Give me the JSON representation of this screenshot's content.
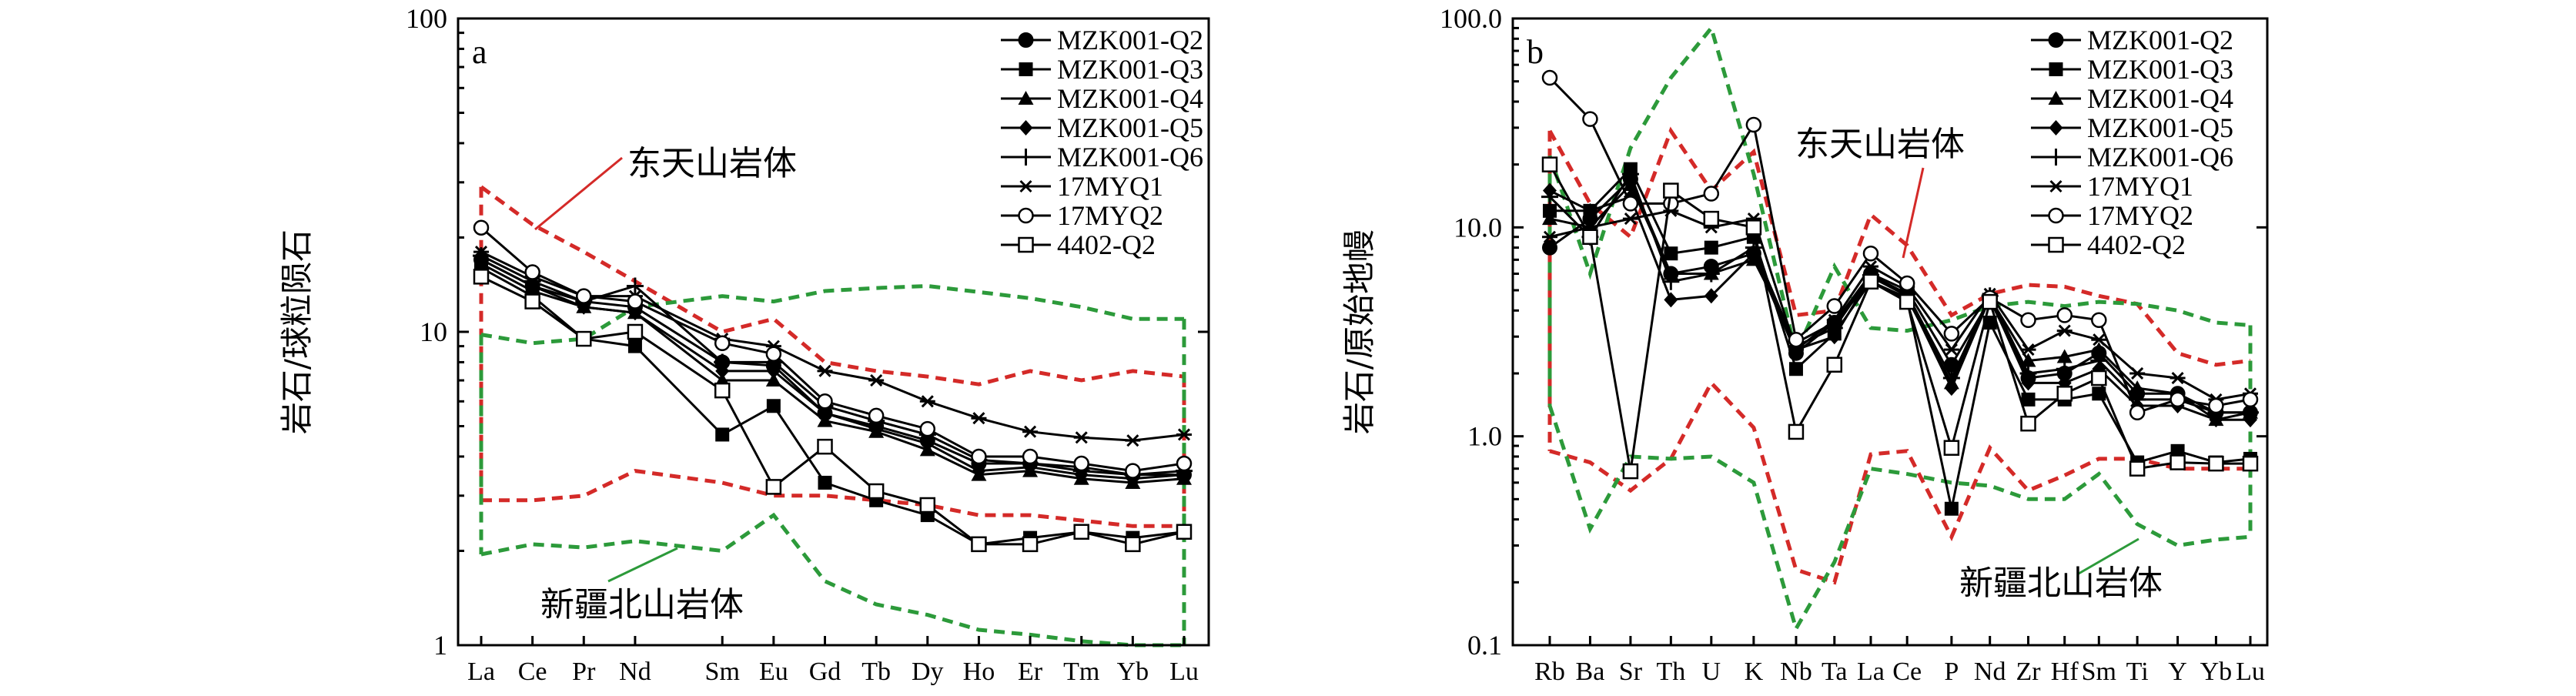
{
  "colors": {
    "red_envelope": "#d42a28",
    "green_envelope": "#2c9a3a",
    "sample": "#000000"
  },
  "chart_data": [
    {
      "type": "line",
      "panel_letter": "a",
      "ylabel": "岩石/球粒陨石",
      "yscale": "log",
      "ylim": [
        1,
        100
      ],
      "yticks": [
        "1",
        "10",
        "100"
      ],
      "grid": false,
      "legend_position": "top-right",
      "categories": [
        "La",
        "Ce",
        "Pr",
        "Nd",
        "Sm",
        "Eu",
        "Gd",
        "Tb",
        "Dy",
        "Ho",
        "Er",
        "Tm",
        "Yb",
        "Lu"
      ],
      "x_positions": [
        0,
        1,
        2,
        3,
        4.7,
        5.7,
        6.7,
        7.7,
        8.7,
        9.7,
        10.7,
        11.7,
        12.7,
        13.7
      ],
      "series": [
        {
          "name": "MZK001-Q2",
          "marker": "circle-filled",
          "values": [
            17,
            14,
            12.5,
            12,
            8,
            7.8,
            5.5,
            5,
            4.5,
            3.8,
            3.8,
            3.7,
            3.5,
            3.5
          ]
        },
        {
          "name": "MZK001-Q3",
          "marker": "square-filled",
          "values": [
            16,
            13,
            9.5,
            9,
            4.7,
            5.8,
            3.3,
            2.9,
            2.6,
            2.1,
            2.2,
            2.3,
            2.2,
            2.3
          ]
        },
        {
          "name": "MZK001-Q4",
          "marker": "triangle-filled",
          "values": [
            16.5,
            13.5,
            12,
            11.5,
            7,
            7,
            5.2,
            4.8,
            4.2,
            3.5,
            3.6,
            3.4,
            3.3,
            3.4
          ]
        },
        {
          "name": "MZK001-Q5",
          "marker": "diamond-filled",
          "values": [
            17,
            14,
            12,
            11.5,
            7.5,
            7.5,
            5.5,
            4.9,
            4.4,
            3.6,
            3.7,
            3.5,
            3.4,
            3.5
          ]
        },
        {
          "name": "MZK001-Q6",
          "marker": "plus",
          "values": [
            17.5,
            14.5,
            12.5,
            14,
            8,
            8,
            5.8,
            5.2,
            4.7,
            3.9,
            3.8,
            3.6,
            3.5,
            3.6
          ]
        },
        {
          "name": "17MYQ1",
          "marker": "asterisk",
          "values": [
            18,
            15,
            13,
            13,
            9.5,
            9,
            7.5,
            7,
            6,
            5.3,
            4.8,
            4.6,
            4.5,
            4.7
          ]
        },
        {
          "name": "17MYQ2",
          "marker": "circle-open",
          "values": [
            21.5,
            15.5,
            13,
            12.5,
            9.2,
            8.5,
            6,
            5.4,
            4.9,
            4,
            4,
            3.8,
            3.6,
            3.8
          ]
        },
        {
          "name": "4402-Q2",
          "marker": "square-open",
          "values": [
            15,
            12.5,
            9.5,
            10,
            6.5,
            3.2,
            4.3,
            3.1,
            2.8,
            2.1,
            2.1,
            2.3,
            2.1,
            2.3
          ]
        }
      ],
      "envelopes": [
        {
          "label": "东天山岩体",
          "color": "red",
          "upper": [
            29,
            22,
            18,
            14.5,
            10,
            11,
            8,
            7.5,
            7.2,
            6.8,
            7.5,
            7,
            7.5,
            7.2
          ],
          "lower": [
            2.9,
            2.9,
            3,
            3.6,
            3.3,
            3,
            3,
            2.9,
            2.8,
            2.6,
            2.6,
            2.5,
            2.4,
            2.4
          ]
        },
        {
          "label": "新疆北山岩体",
          "color": "green",
          "upper": [
            9.8,
            9.2,
            9.5,
            12,
            13,
            12.5,
            13.5,
            13.8,
            14,
            13.4,
            12.8,
            12,
            11,
            11
          ],
          "lower": [
            1.95,
            2.1,
            2.05,
            2.15,
            2,
            2.6,
            1.6,
            1.35,
            1.25,
            1.12,
            1.08,
            1.03,
            1,
            1
          ]
        }
      ],
      "annotations": [
        "东天山岩体",
        "新疆北山岩体"
      ]
    },
    {
      "type": "line",
      "panel_letter": "b",
      "ylabel": "岩石/原始地幔",
      "yscale": "log",
      "ylim": [
        0.1,
        100
      ],
      "yticks": [
        "0.1",
        "1.0",
        "10.0",
        "100.0"
      ],
      "grid": false,
      "legend_position": "top-right",
      "categories": [
        "Rb",
        "Ba",
        "Sr",
        "Th",
        "U",
        "K",
        "Nb",
        "Ta",
        "La",
        "Ce",
        "P",
        "Nd",
        "Zr",
        "Hf",
        "Sm",
        "Ti",
        "Y",
        "Yb",
        "Lu"
      ],
      "x_positions": [
        0,
        1,
        2,
        3,
        4,
        5.05,
        6.1,
        7.05,
        7.95,
        8.85,
        9.95,
        10.9,
        11.85,
        12.75,
        13.6,
        14.55,
        15.55,
        16.5,
        17.35
      ],
      "series": [
        {
          "name": "MZK001-Q2",
          "marker": "circle-filled",
          "values": [
            8,
            11,
            17,
            6,
            6.5,
            7.5,
            2.5,
            3.5,
            6,
            5,
            2.2,
            4.5,
            1.9,
            2,
            2.5,
            1.6,
            1.6,
            1.3,
            1.3
          ]
        },
        {
          "name": "MZK001-Q3",
          "marker": "square-filled",
          "values": [
            12,
            12,
            19,
            7.5,
            8,
            9,
            2.1,
            3.1,
            5.5,
            4.5,
            0.45,
            3.5,
            1.5,
            1.5,
            1.6,
            0.75,
            0.85,
            0.75,
            0.78
          ]
        },
        {
          "name": "MZK001-Q4",
          "marker": "triangle-filled",
          "values": [
            11,
            10,
            16,
            6,
            6,
            7,
            2.8,
            3.5,
            5.5,
            4.6,
            1.8,
            4.6,
            2.3,
            2.4,
            2.6,
            1.7,
            1.6,
            1.2,
            1.3
          ]
        },
        {
          "name": "MZK001-Q5",
          "marker": "diamond-filled",
          "values": [
            15,
            12,
            14,
            4.5,
            4.7,
            7.5,
            2.6,
            3,
            5.8,
            4.7,
            1.7,
            4.6,
            1.8,
            1.8,
            2.1,
            1.4,
            1.4,
            1.2,
            1.2
          ]
        },
        {
          "name": "MZK001-Q6",
          "marker": "plus",
          "values": [
            14,
            9,
            18,
            5.5,
            6,
            8,
            2.7,
            3.3,
            5.9,
            4.8,
            1.9,
            4.7,
            2,
            2.1,
            2.3,
            1.5,
            1.5,
            1.3,
            1.3
          ]
        },
        {
          "name": "17MYQ1",
          "marker": "asterisk",
          "values": [
            9,
            10,
            11,
            12,
            10,
            11,
            2.6,
            3.6,
            6.5,
            5.2,
            2.6,
            4.8,
            2.6,
            3.2,
            2.9,
            2,
            1.9,
            1.5,
            1.6
          ]
        },
        {
          "name": "17MYQ2",
          "marker": "circle-open",
          "values": [
            52,
            33,
            13,
            13,
            14.5,
            31,
            2.9,
            4.2,
            7.5,
            5.4,
            3.1,
            4.6,
            3.6,
            3.8,
            3.6,
            1.3,
            1.5,
            1.4,
            1.5
          ]
        },
        {
          "name": "4402-Q2",
          "marker": "square-open",
          "values": [
            20,
            9,
            0.68,
            15,
            11,
            10,
            1.05,
            2.2,
            5.5,
            4.4,
            0.88,
            4.4,
            1.15,
            1.6,
            1.9,
            0.7,
            0.75,
            0.74,
            0.74
          ]
        }
      ],
      "envelopes": [
        {
          "label": "东天山岩体",
          "color": "red",
          "upper": [
            29,
            13,
            9,
            29,
            15,
            23,
            3.8,
            4,
            11.5,
            8.2,
            3.8,
            4.8,
            5.3,
            5.2,
            4.7,
            4.3,
            2.5,
            2.2,
            2.3
          ],
          "lower": [
            0.85,
            0.75,
            0.55,
            0.78,
            1.8,
            1.1,
            0.23,
            0.2,
            0.82,
            0.85,
            0.33,
            0.88,
            0.55,
            0.65,
            0.78,
            0.78,
            0.7,
            0.7,
            0.7
          ]
        },
        {
          "label": "新疆北山岩体",
          "color": "green",
          "upper": [
            22,
            6,
            24,
            52,
            90,
            18,
            2.5,
            6.5,
            3.3,
            3.2,
            3.6,
            4.2,
            4.4,
            4.2,
            4.4,
            4.3,
            4,
            3.5,
            3.4
          ],
          "lower": [
            1.4,
            0.36,
            0.8,
            0.78,
            0.8,
            0.6,
            0.12,
            0.25,
            0.7,
            0.66,
            0.6,
            0.58,
            0.5,
            0.5,
            0.66,
            0.38,
            0.3,
            0.32,
            0.33
          ]
        }
      ],
      "annotations": [
        "东天山岩体",
        "新疆北山岩体"
      ]
    }
  ]
}
